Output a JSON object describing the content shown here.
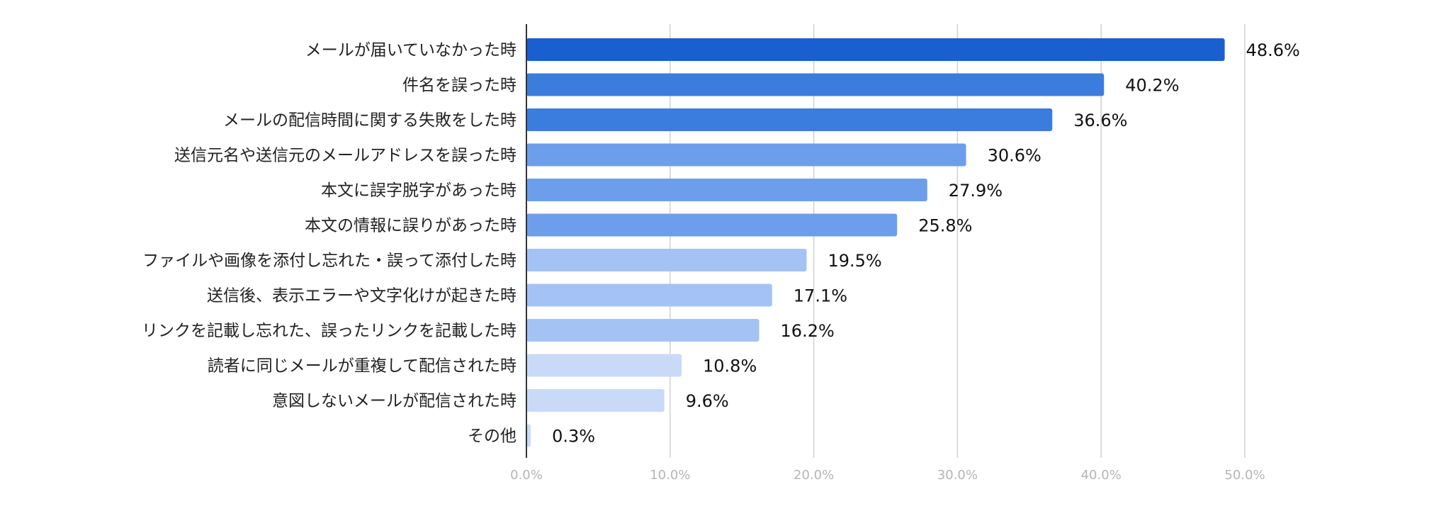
{
  "chart_data": {
    "type": "bar",
    "orientation": "horizontal",
    "categories": [
      "メールが届いていなかった時",
      "件名を誤った時",
      "メールの配信時間に関する失敗をした時",
      "送信元名や送信元のメールアドレスを誤った時",
      "本文に誤字脱字があった時",
      "本文の情報に誤りがあった時",
      "ファイルや画像を添付し忘れた・誤って添付した時",
      "送信後、表示エラーや文字化けが起きた時",
      "リンクを記載し忘れた、誤ったリンクを記載した時",
      "読者に同じメールが重複して配信された時",
      "意図しないメールが配信された時",
      "その他"
    ],
    "values": [
      48.6,
      40.2,
      36.6,
      30.6,
      27.9,
      25.8,
      19.5,
      17.1,
      16.2,
      10.8,
      9.6,
      0.3
    ],
    "value_labels": [
      "48.6%",
      "40.2%",
      "36.6%",
      "30.6%",
      "27.9%",
      "25.8%",
      "19.5%",
      "17.1%",
      "16.2%",
      "10.8%",
      "9.6%",
      "0.3%"
    ],
    "bar_colors": [
      "#1a5fd0",
      "#3b7ddd",
      "#3b7ddd",
      "#6d9eeb",
      "#6d9eeb",
      "#6d9eeb",
      "#a4c2f4",
      "#a4c2f4",
      "#a4c2f4",
      "#c9daf8",
      "#c9daf8",
      "#c9daf8"
    ],
    "xlim": [
      0,
      50
    ],
    "xticks": [
      0,
      10,
      20,
      30,
      40,
      50
    ],
    "xtick_labels": [
      "0.0%",
      "10.0%",
      "20.0%",
      "30.0%",
      "40.0%",
      "50.0%"
    ],
    "grid": "vertical",
    "legend": "none",
    "title": "",
    "xlabel": "",
    "ylabel": ""
  }
}
